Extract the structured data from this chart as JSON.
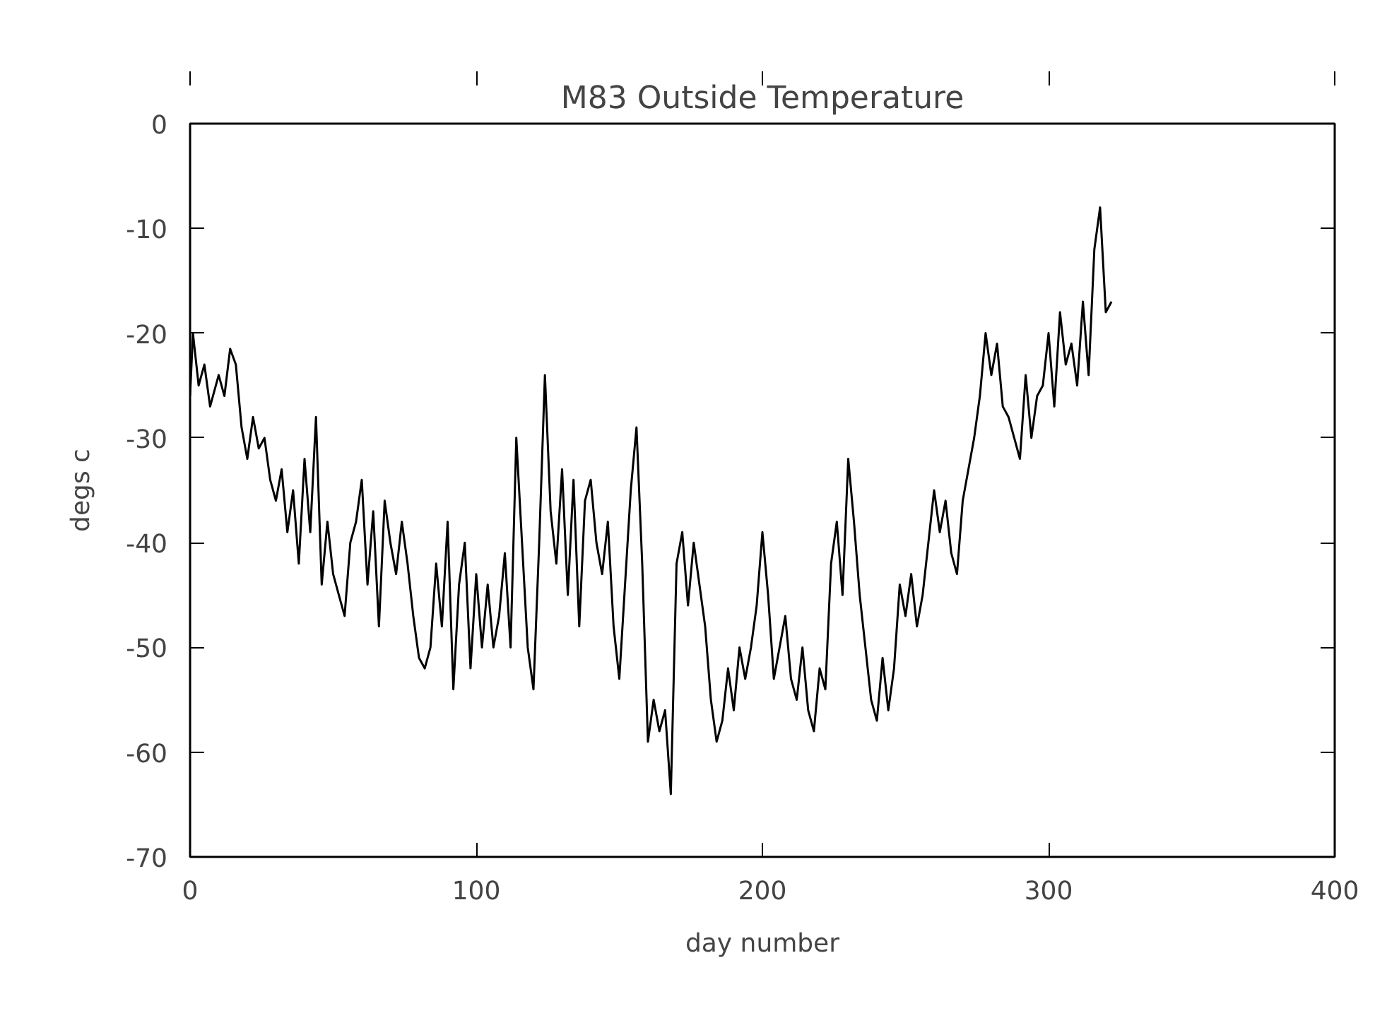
{
  "chart_data": {
    "type": "line",
    "title": "M83 Outside Temperature",
    "xlabel": "day number",
    "ylabel": "degs c",
    "xlim": [
      0,
      400
    ],
    "xticks": [
      0,
      100,
      200,
      300,
      400
    ],
    "ylim": [
      -70,
      0
    ],
    "yticks": [
      -70,
      -60,
      -50,
      -40,
      -30,
      -20,
      -10,
      0
    ],
    "grid": false,
    "marker": "none",
    "line_style": "solid",
    "series": [
      {
        "color": "#000000",
        "x": [
          0,
          1,
          3,
          5,
          7,
          10,
          12,
          14,
          16,
          18,
          20,
          22,
          24,
          26,
          28,
          30,
          32,
          34,
          36,
          38,
          40,
          42,
          44,
          46,
          48,
          50,
          52,
          54,
          56,
          58,
          60,
          62,
          64,
          66,
          68,
          70,
          72,
          74,
          76,
          78,
          80,
          82,
          84,
          86,
          88,
          90,
          92,
          94,
          96,
          98,
          100,
          102,
          104,
          106,
          108,
          110,
          112,
          114,
          116,
          118,
          120,
          122,
          124,
          126,
          128,
          130,
          132,
          134,
          136,
          138,
          140,
          142,
          144,
          146,
          148,
          150,
          152,
          154,
          156,
          158,
          160,
          162,
          164,
          166,
          168,
          170,
          172,
          174,
          176,
          178,
          180,
          182,
          184,
          186,
          188,
          190,
          192,
          194,
          196,
          198,
          200,
          202,
          204,
          206,
          208,
          210,
          212,
          214,
          216,
          218,
          220,
          222,
          224,
          226,
          228,
          230,
          232,
          234,
          236,
          238,
          240,
          242,
          244,
          246,
          248,
          250,
          252,
          254,
          256,
          258,
          260,
          262,
          264,
          266,
          268,
          270,
          272,
          274,
          276,
          278,
          280,
          282,
          284,
          286,
          288,
          290,
          292,
          294,
          296,
          298,
          300,
          302,
          304,
          306,
          308,
          310,
          312,
          314,
          316,
          318,
          320,
          322
        ],
        "values": [
          -26,
          -20,
          -25,
          -23,
          -27,
          -24,
          -26,
          -21.5,
          -23,
          -29,
          -32,
          -28,
          -31,
          -30,
          -34,
          -36,
          -33,
          -39,
          -35,
          -42,
          -32,
          -39,
          -28,
          -44,
          -38,
          -43,
          -45,
          -47,
          -40,
          -38,
          -34,
          -44,
          -37,
          -48,
          -36,
          -40,
          -43,
          -38,
          -42,
          -47,
          -51,
          -52,
          -50,
          -42,
          -48,
          -38,
          -54,
          -44,
          -40,
          -52,
          -43,
          -50,
          -44,
          -50,
          -47,
          -41,
          -50,
          -30,
          -40,
          -50,
          -54,
          -40,
          -24,
          -37,
          -42,
          -33,
          -45,
          -34,
          -48,
          -36,
          -34,
          -40,
          -43,
          -38,
          -48,
          -53,
          -44,
          -35,
          -29,
          -42,
          -59,
          -55,
          -58,
          -56,
          -64,
          -42,
          -39,
          -46,
          -40,
          -44,
          -48,
          -55,
          -59,
          -57,
          -52,
          -56,
          -50,
          -53,
          -50,
          -46,
          -39,
          -45,
          -53,
          -50,
          -47,
          -53,
          -55,
          -50,
          -56,
          -58,
          -52,
          -54,
          -42,
          -38,
          -45,
          -32,
          -38,
          -45,
          -50,
          -55,
          -57,
          -51,
          -56,
          -52,
          -44,
          -47,
          -43,
          -48,
          -45,
          -40,
          -35,
          -39,
          -36,
          -41,
          -43,
          -36,
          -33,
          -30,
          -26,
          -20,
          -24,
          -21,
          -27,
          -28,
          -30,
          -32,
          -24,
          -30,
          -26,
          -25,
          -20,
          -27,
          -18,
          -23,
          -21,
          -25,
          -17,
          -24,
          -12,
          -8,
          -18,
          -17
        ]
      }
    ]
  }
}
